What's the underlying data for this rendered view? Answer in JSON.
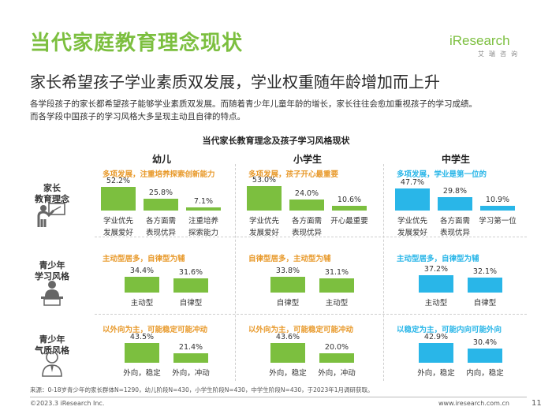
{
  "header": {
    "title": "当代家庭教育理念现状",
    "subtitle": "家长希望孩子学业素质双发展，学业权重随年龄增加而上升",
    "intro_lines": [
      "各学段孩子的家长都希望孩子能够学业素质双发展。而随着青少年儿童年龄的增长，家长往往会愈加重视孩子的学习成绩。",
      "而各学段中国孩子的学习风格大多呈现主动且自律的特点。"
    ]
  },
  "logo": {
    "text": "iResearch",
    "sub": "艾瑞咨询"
  },
  "colors": {
    "green": "#7cbf3f",
    "blue": "#29b6e8",
    "accent_green": "#6abf2e",
    "orange_tag": "#e89a2c"
  },
  "chart_data": {
    "type": "bar",
    "title": "当代家长教育理念及孩子学习风格现状",
    "stages": [
      "幼儿",
      "小学生",
      "中学生"
    ],
    "rows": [
      {
        "label": "家长教育理念",
        "label_lines": [
          "家长",
          "教育理念"
        ],
        "icon": "teacher-board-icon",
        "panels": [
          {
            "tag": "多项发展，注重培养探索创新能力",
            "categories": [
              [
                "学业优先",
                "发展爱好"
              ],
              [
                "各方面需",
                "表现优异"
              ],
              [
                "注重培养",
                "探索能力"
              ]
            ],
            "values": [
              52.2,
              25.8,
              7.1
            ]
          },
          {
            "tag": "多项发展，孩子开心最重要",
            "categories": [
              [
                "学业优先",
                "发展爱好"
              ],
              [
                "各方面需",
                "表现优异"
              ],
              [
                "开心最重要"
              ]
            ],
            "values": [
              53.0,
              24.0,
              10.6
            ]
          },
          {
            "tag": "多项发展，学业是第一位的",
            "categories": [
              [
                "学业优先",
                "发展爱好"
              ],
              [
                "各方面需",
                "表现优异"
              ],
              [
                "学习第一位"
              ]
            ],
            "values": [
              47.7,
              29.8,
              10.9
            ]
          }
        ]
      },
      {
        "label": "青少年学习风格",
        "label_lines": [
          "青少年",
          "学习风格"
        ],
        "icon": "student-desk-icon",
        "panels": [
          {
            "tag": "主动型居多，自律型为辅",
            "categories": [
              [
                "主动型"
              ],
              [
                "自律型"
              ]
            ],
            "values": [
              34.4,
              31.6
            ]
          },
          {
            "tag": "自律型居多，主动型为辅",
            "categories": [
              [
                "自律型"
              ],
              [
                "主动型"
              ]
            ],
            "values": [
              33.8,
              31.1
            ]
          },
          {
            "tag": "主动型居多，自律型为辅",
            "categories": [
              [
                "主动型"
              ],
              [
                "自律型"
              ]
            ],
            "values": [
              37.2,
              32.1
            ]
          }
        ]
      },
      {
        "label": "青少年气质风格",
        "label_lines": [
          "青少年",
          "气质风格"
        ],
        "icon": "person-tie-icon",
        "panels": [
          {
            "tag": "以外向为主，可能稳定可能冲动",
            "categories": [
              [
                "外向，稳定"
              ],
              [
                "外向，冲动"
              ]
            ],
            "values": [
              43.5,
              21.4
            ]
          },
          {
            "tag": "以外向为主，可能稳定可能冲动",
            "categories": [
              [
                "外向，稳定"
              ],
              [
                "外向，冲动"
              ]
            ],
            "values": [
              43.6,
              20.0
            ]
          },
          {
            "tag": "以稳定为主，可能内向可能外向",
            "categories": [
              [
                "外向，稳定"
              ],
              [
                "内向，稳定"
              ]
            ],
            "values": [
              42.9,
              30.4
            ]
          }
        ]
      }
    ],
    "unit": "%"
  },
  "footer": {
    "source": "来源：0-18岁青少年的家长群体N=1290，幼儿阶段N=430，小学生阶段N=430，中学生阶段N=430，于2023年1月调研获取。",
    "copyright": "©2023.3 iResearch Inc.",
    "site": "www.iresearch.com.cn",
    "page": "11"
  }
}
